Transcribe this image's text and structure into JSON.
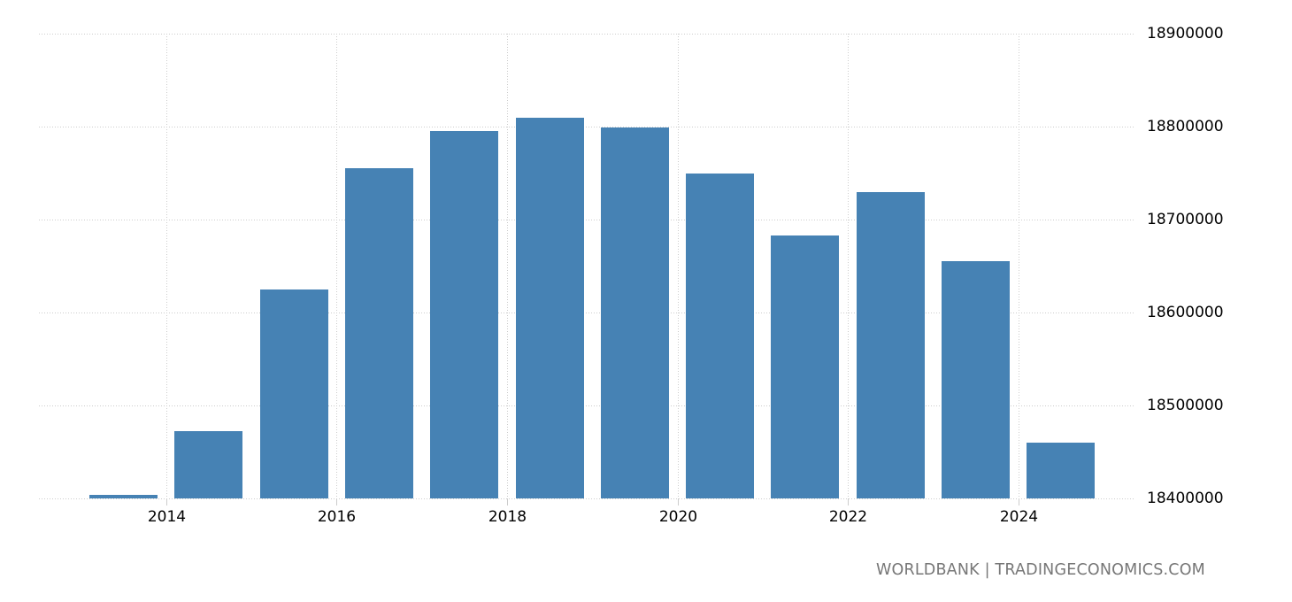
{
  "chart_data": {
    "type": "bar",
    "title": "",
    "xlabel": "",
    "ylabel": "",
    "categories": [
      "2013",
      "2014",
      "2015",
      "2016",
      "2017",
      "2018",
      "2019",
      "2020",
      "2021",
      "2022",
      "2023",
      "2024"
    ],
    "values": [
      18403800,
      18472000,
      18625000,
      18755000,
      18795000,
      18810000,
      18799000,
      18750000,
      18683000,
      18730000,
      18655000,
      18460000
    ],
    "ylim": [
      18400000,
      18900000
    ],
    "yticks": [
      "18400000",
      "18500000",
      "18600000",
      "18700000",
      "18800000",
      "18900000"
    ],
    "xticks": [
      "2014",
      "2016",
      "2018",
      "2020",
      "2022",
      "2024"
    ],
    "grid": true,
    "legend": null,
    "bar_color": "#4682b4",
    "y_axis_position": "right"
  },
  "credit": "WORLDBANK | TRADINGECONOMICS.COM"
}
